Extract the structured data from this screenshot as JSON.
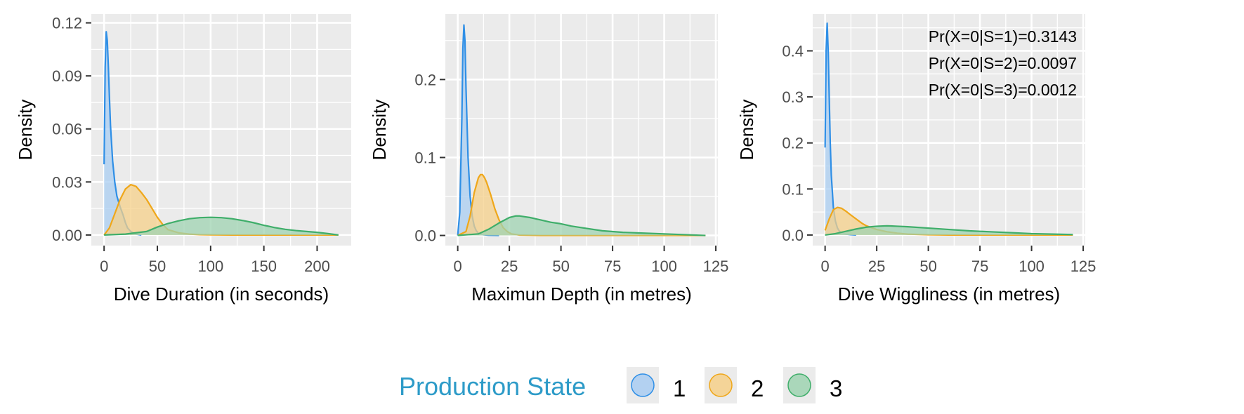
{
  "chart_data": [
    {
      "type": "area",
      "xlabel": "Dive Duration (in seconds)",
      "ylabel": "Density",
      "xlim": [
        -12,
        232
      ],
      "ylim": [
        -0.006,
        0.125
      ],
      "xticks": [
        0,
        50,
        100,
        150,
        200
      ],
      "yticks": [
        0.0,
        0.03,
        0.06,
        0.09,
        0.12
      ],
      "ytick_labels": [
        "0.00",
        "0.03",
        "0.06",
        "0.09",
        "0.12"
      ],
      "grid": true,
      "series": [
        {
          "name": "1",
          "x": [
            0,
            1,
            2,
            3,
            4,
            5,
            6,
            8,
            10,
            12,
            15,
            18,
            20,
            22,
            25,
            28,
            30,
            35
          ],
          "y": [
            0.04,
            0.095,
            0.115,
            0.11,
            0.095,
            0.078,
            0.062,
            0.042,
            0.03,
            0.022,
            0.016,
            0.011,
            0.007,
            0.004,
            0.002,
            0.001,
            0.0005,
            0.0
          ]
        },
        {
          "name": "2",
          "x": [
            0,
            5,
            10,
            15,
            20,
            25,
            30,
            35,
            40,
            45,
            50,
            55,
            60,
            70,
            80,
            90,
            100,
            120,
            150,
            200,
            220
          ],
          "y": [
            0.0,
            0.004,
            0.012,
            0.02,
            0.026,
            0.0285,
            0.0275,
            0.024,
            0.02,
            0.015,
            0.01,
            0.006,
            0.003,
            0.0012,
            0.0005,
            0.0002,
            0.0001,
            0.0,
            0.0,
            0.0,
            0.0
          ]
        },
        {
          "name": "3",
          "x": [
            0,
            20,
            40,
            50,
            60,
            70,
            80,
            90,
            100,
            110,
            120,
            130,
            140,
            150,
            160,
            170,
            180,
            190,
            200,
            210,
            220
          ],
          "y": [
            0.0,
            0.0005,
            0.002,
            0.0045,
            0.0065,
            0.008,
            0.0092,
            0.0098,
            0.01,
            0.0098,
            0.0092,
            0.0082,
            0.007,
            0.0055,
            0.0042,
            0.0032,
            0.0025,
            0.002,
            0.0015,
            0.0008,
            0.0
          ]
        }
      ]
    },
    {
      "type": "area",
      "xlabel": "Maximun Depth (in metres)",
      "ylabel": "Density",
      "xlim": [
        -6,
        126
      ],
      "ylim": [
        -0.013,
        0.284
      ],
      "xticks": [
        0,
        25,
        50,
        75,
        100,
        125
      ],
      "yticks": [
        0.0,
        0.1,
        0.2
      ],
      "ytick_labels": [
        "0.0",
        "0.1",
        "0.2"
      ],
      "grid": true,
      "series": [
        {
          "name": "1",
          "x": [
            0,
            1,
            2,
            2.5,
            3,
            3.5,
            4,
            5,
            6,
            7,
            8,
            9,
            10,
            12,
            15,
            20
          ],
          "y": [
            0.0,
            0.03,
            0.15,
            0.24,
            0.27,
            0.25,
            0.19,
            0.1,
            0.05,
            0.025,
            0.012,
            0.006,
            0.003,
            0.001,
            0.0003,
            0.0
          ]
        },
        {
          "name": "2",
          "x": [
            0,
            4,
            6,
            8,
            10,
            11,
            12,
            13,
            14,
            16,
            18,
            20,
            22,
            24,
            26,
            30,
            40,
            60,
            120
          ],
          "y": [
            0.0,
            0.005,
            0.025,
            0.055,
            0.074,
            0.078,
            0.078,
            0.074,
            0.068,
            0.052,
            0.034,
            0.02,
            0.01,
            0.005,
            0.002,
            0.0005,
            0.0,
            0.0,
            0.0
          ]
        },
        {
          "name": "3",
          "x": [
            0,
            10,
            15,
            20,
            25,
            28,
            30,
            35,
            40,
            45,
            50,
            55,
            60,
            70,
            80,
            90,
            100,
            110,
            120
          ],
          "y": [
            0.0,
            0.002,
            0.008,
            0.016,
            0.023,
            0.025,
            0.025,
            0.023,
            0.02,
            0.017,
            0.015,
            0.012,
            0.01,
            0.006,
            0.004,
            0.003,
            0.002,
            0.001,
            0.0
          ]
        }
      ]
    },
    {
      "type": "area",
      "xlabel": "Dive Wiggliness (in metres)",
      "ylabel": "Density",
      "xlim": [
        -6,
        126
      ],
      "ylim": [
        -0.023,
        0.48
      ],
      "xticks": [
        0,
        25,
        50,
        75,
        100,
        125
      ],
      "yticks": [
        0.0,
        0.1,
        0.2,
        0.3,
        0.4
      ],
      "ytick_labels": [
        "0.0",
        "0.1",
        "0.2",
        "0.3",
        "0.4"
      ],
      "grid": true,
      "annotations": [
        "Pr(X=0|S=1)=0.3143",
        "Pr(X=0|S=2)=0.0097",
        "Pr(X=0|S=3)=0.0012"
      ],
      "series": [
        {
          "name": "1",
          "x": [
            0,
            0.5,
            1,
            1.5,
            2,
            2.5,
            3,
            4,
            5,
            6,
            7,
            8,
            10,
            12,
            15
          ],
          "y": [
            0.19,
            0.4,
            0.46,
            0.4,
            0.3,
            0.2,
            0.13,
            0.06,
            0.03,
            0.015,
            0.008,
            0.004,
            0.002,
            0.001,
            0.0
          ]
        },
        {
          "name": "2",
          "x": [
            0,
            2,
            4,
            6,
            8,
            10,
            12,
            15,
            18,
            20,
            25,
            30,
            35,
            40,
            50,
            60,
            120
          ],
          "y": [
            0.01,
            0.035,
            0.055,
            0.06,
            0.058,
            0.052,
            0.045,
            0.035,
            0.025,
            0.02,
            0.012,
            0.007,
            0.004,
            0.002,
            0.0005,
            0.0,
            0.0
          ]
        },
        {
          "name": "3",
          "x": [
            0,
            5,
            10,
            15,
            20,
            25,
            30,
            35,
            40,
            50,
            60,
            70,
            80,
            90,
            100,
            110,
            120
          ],
          "y": [
            0.0,
            0.003,
            0.008,
            0.013,
            0.017,
            0.019,
            0.02,
            0.019,
            0.018,
            0.015,
            0.012,
            0.009,
            0.007,
            0.005,
            0.003,
            0.002,
            0.001
          ]
        }
      ]
    }
  ],
  "legend": {
    "title": "Production State",
    "items": [
      "1",
      "2",
      "3"
    ]
  },
  "colors": {
    "panel_bg": "#ebebeb",
    "grid": "#ffffff",
    "legend_title": "#2d9bc8",
    "state_1_line": "#2f8fe6",
    "state_1_fill": "#a9cdf2",
    "state_2_line": "#efa71a",
    "state_2_fill": "#f6d089",
    "state_3_line": "#3fae6a",
    "state_3_fill": "#9fd3b2"
  }
}
